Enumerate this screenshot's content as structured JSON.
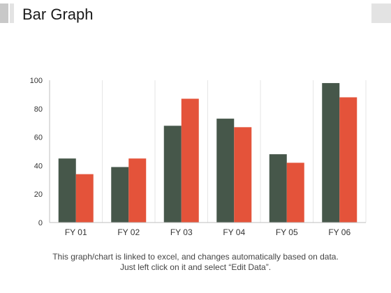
{
  "header": {
    "title": "Bar Graph"
  },
  "footer": {
    "line1": "This graph/chart is linked to excel, and changes automatically based on data.",
    "line2": "Just left click on it and select “Edit Data”."
  },
  "colors": {
    "series1": "#46574a",
    "series2": "#e4533a",
    "grid": "#e6e6e6",
    "axis": "#bfbfbf",
    "text": "#333333"
  },
  "chart_data": {
    "type": "bar",
    "categories": [
      "FY 01",
      "FY 02",
      "FY 03",
      "FY 04",
      "FY 05",
      "FY 06"
    ],
    "series": [
      {
        "values": [
          45,
          39,
          68,
          73,
          48,
          98
        ]
      },
      {
        "values": [
          34,
          45,
          87,
          67,
          42,
          88
        ]
      }
    ],
    "yticks": [
      "0",
      "20",
      "40",
      "60",
      "80",
      "100"
    ],
    "ylim": [
      0,
      100
    ],
    "grid": "vertical category separators",
    "legend": "none"
  }
}
